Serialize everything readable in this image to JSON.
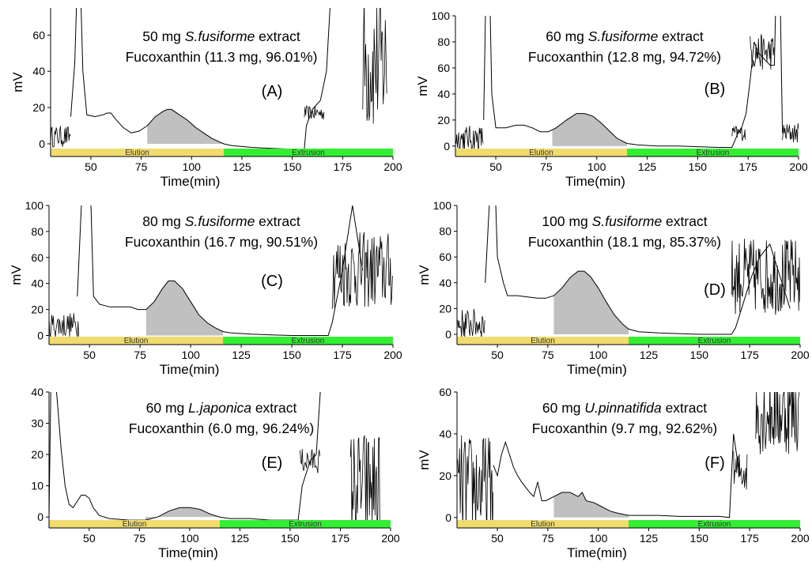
{
  "colors": {
    "trace": "#000000",
    "fill": "#c0c0c0",
    "elution": "#f0dc6e",
    "extrusion": "#33ee33"
  },
  "chart_data": [
    {
      "type": "line",
      "panel": "(A)",
      "line1": "50 mg",
      "species": "S.fusiforme",
      "line1_end": "extract",
      "line2": "Fucoxanthin (11.3 mg, 96.01%)",
      "xlabel": "Time(min)",
      "ylabel": "mV",
      "xlim": [
        30,
        200
      ],
      "ylim": [
        -7,
        75
      ],
      "xticks": [
        50,
        75,
        100,
        125,
        150,
        175,
        200
      ],
      "yticks": [
        0,
        20,
        40,
        60
      ],
      "bands": [
        {
          "label": "Elution",
          "start": 30,
          "end": 116,
          "color": "elution"
        },
        {
          "label": "Extrusion",
          "start": 116,
          "end": 200,
          "color": "extrusion"
        }
      ],
      "shaded": [
        78,
        116
      ],
      "trace": {
        "x": [
          40,
          42,
          44,
          46,
          48,
          52,
          56,
          58,
          60,
          62,
          66,
          70,
          74,
          78,
          82,
          86,
          88,
          90,
          94,
          98,
          102,
          106,
          110,
          114,
          116,
          120,
          130,
          140,
          150,
          156,
          157,
          160,
          164,
          167,
          170
        ],
        "y": [
          15,
          45,
          120,
          40,
          16,
          15,
          16,
          17,
          17,
          14,
          9,
          6,
          7,
          10,
          15,
          18,
          19,
          19,
          16,
          13,
          9,
          6,
          3,
          1,
          0,
          -1,
          -2,
          -2.5,
          -3,
          -3,
          10,
          19,
          24,
          40,
          100
        ]
      },
      "noise": [
        {
          "start": 30,
          "end": 40,
          "base": 4,
          "amp": 6
        },
        {
          "start": 156,
          "end": 166,
          "base": 17,
          "amp": 4
        },
        {
          "start": 185,
          "end": 197,
          "base": 45,
          "amp": 40
        }
      ]
    },
    {
      "type": "line",
      "panel": "(B)",
      "line1": "60 mg",
      "species": "S.fusiforme",
      "line1_end": "extract",
      "line2": "Fucoxanthin (12.8 mg, 94.72%)",
      "xlabel": "Time(min)",
      "ylabel": "mV",
      "xlim": [
        30,
        200
      ],
      "ylim": [
        -8,
        100
      ],
      "xticks": [
        50,
        75,
        100,
        125,
        150,
        175,
        200
      ],
      "yticks": [
        0,
        20,
        40,
        60,
        80,
        100
      ],
      "bands": [
        {
          "label": "Elution",
          "start": 30,
          "end": 115,
          "color": "elution"
        },
        {
          "label": "Extrusion",
          "start": 115,
          "end": 200,
          "color": "extrusion"
        }
      ],
      "shaded": [
        78,
        115
      ],
      "trace": {
        "x": [
          44,
          46,
          48,
          50,
          55,
          60,
          64,
          68,
          72,
          76,
          80,
          85,
          90,
          94,
          98,
          102,
          106,
          110,
          115,
          120,
          130,
          140,
          150,
          160,
          167,
          170,
          172,
          174,
          176,
          178,
          180,
          184,
          186,
          188,
          190,
          192
        ],
        "y": [
          20,
          200,
          40,
          14,
          14,
          16,
          16,
          14,
          11,
          11,
          14,
          20,
          25,
          25,
          23,
          18,
          12,
          6,
          2,
          1,
          0,
          0,
          -0.5,
          -1,
          -1,
          10,
          15,
          25,
          50,
          80,
          72,
          65,
          62,
          62,
          200,
          10
        ]
      },
      "noise": [
        {
          "start": 30,
          "end": 44,
          "base": 6,
          "amp": 10
        },
        {
          "start": 167,
          "end": 174,
          "base": 10,
          "amp": 6
        },
        {
          "start": 176,
          "end": 188,
          "base": 72,
          "amp": 14
        },
        {
          "start": 192,
          "end": 200,
          "base": 10,
          "amp": 8
        }
      ]
    },
    {
      "type": "line",
      "panel": "(C)",
      "line1": "80 mg",
      "species": "S.fusiforme",
      "line1_end": "extract",
      "line2": "Fucoxanthin (16.7 mg, 90.51%)",
      "xlabel": "Time(min)",
      "ylabel": "mV",
      "xlim": [
        30,
        200
      ],
      "ylim": [
        -7,
        100
      ],
      "xticks": [
        50,
        75,
        100,
        125,
        150,
        175,
        200
      ],
      "yticks": [
        0,
        20,
        40,
        60,
        80,
        100
      ],
      "bands": [
        {
          "label": "Elution",
          "start": 30,
          "end": 116,
          "color": "elution"
        },
        {
          "label": "Extrusion",
          "start": 116,
          "end": 200,
          "color": "extrusion"
        }
      ],
      "shaded": [
        78,
        116
      ],
      "trace": {
        "x": [
          44,
          46,
          48,
          50,
          52,
          55,
          60,
          65,
          70,
          74,
          78,
          82,
          86,
          89,
          92,
          96,
          100,
          104,
          108,
          112,
          116,
          120,
          130,
          140,
          150,
          160,
          168,
          170,
          175,
          180,
          185
        ],
        "y": [
          30,
          100,
          110,
          140,
          30,
          24,
          22,
          22,
          22,
          20,
          20,
          26,
          36,
          42,
          42,
          36,
          26,
          16,
          10,
          6,
          3,
          2,
          1,
          0.5,
          0,
          0,
          0,
          10,
          50,
          100,
          50
        ]
      },
      "noise": [
        {
          "start": 30,
          "end": 45,
          "base": 8,
          "amp": 10
        },
        {
          "start": 170,
          "end": 200,
          "base": 50,
          "amp": 30
        }
      ]
    },
    {
      "type": "line",
      "panel": "(D)",
      "line1": "100 mg",
      "species": "S.fusiforme",
      "line1_end": "extract",
      "line2": "Fucoxanthin (18.1 mg, 85.37%)",
      "xlabel": "Time(min)",
      "ylabel": "mV",
      "xlim": [
        30,
        200
      ],
      "ylim": [
        -8,
        100
      ],
      "xticks": [
        50,
        75,
        100,
        125,
        150,
        175,
        200
      ],
      "yticks": [
        0,
        20,
        40,
        60,
        80,
        100
      ],
      "bands": [
        {
          "label": "Elution",
          "start": 30,
          "end": 115,
          "color": "elution"
        },
        {
          "label": "Extrusion",
          "start": 115,
          "end": 200,
          "color": "extrusion"
        }
      ],
      "shaded": [
        78,
        115
      ],
      "trace": {
        "x": [
          44,
          46,
          48,
          50,
          53,
          55,
          60,
          65,
          70,
          74,
          78,
          82,
          86,
          90,
          93,
          96,
          100,
          104,
          108,
          112,
          115,
          120,
          130,
          140,
          150,
          160,
          166,
          168,
          172,
          176,
          180,
          185,
          190,
          195
        ],
        "y": [
          40,
          100,
          160,
          60,
          40,
          30,
          30,
          29,
          28,
          28,
          30,
          36,
          44,
          49,
          49,
          45,
          36,
          25,
          15,
          8,
          4,
          2,
          1,
          0.5,
          0,
          0,
          0,
          5,
          25,
          45,
          60,
          70,
          45,
          20
        ]
      },
      "noise": [
        {
          "start": 30,
          "end": 44,
          "base": 8,
          "amp": 12
        },
        {
          "start": 166,
          "end": 200,
          "base": 45,
          "amp": 30
        }
      ]
    },
    {
      "type": "line",
      "panel": "(E)",
      "line1": "60 mg",
      "species": "L.japonica",
      "line1_end": "extract",
      "line2": "Fucoxanthin (6.0 mg, 96.24%)",
      "xlabel": "Time(min)",
      "ylabel": "",
      "xlim": [
        30,
        200
      ],
      "ylim": [
        -3.5,
        40
      ],
      "xticks": [
        50,
        75,
        100,
        125,
        150,
        175,
        200
      ],
      "yticks": [
        0,
        10,
        20,
        30,
        40
      ],
      "bands": [
        {
          "label": "Elution",
          "start": 30,
          "end": 115,
          "color": "elution"
        },
        {
          "label": "Extrusion",
          "start": 115,
          "end": 200,
          "color": "extrusion"
        }
      ],
      "shaded": [
        78,
        115
      ],
      "trace": {
        "x": [
          30,
          31,
          32,
          33,
          34,
          36,
          38,
          40,
          42,
          44,
          46,
          48,
          50,
          52,
          55,
          60,
          70,
          78,
          84,
          90,
          95,
          100,
          105,
          110,
          115,
          120,
          130,
          140,
          150,
          154,
          156,
          160,
          163,
          165,
          170
        ],
        "y": [
          0,
          45,
          45,
          45,
          38,
          22,
          10,
          4,
          3,
          5,
          7,
          7,
          6,
          3,
          0.5,
          -0.5,
          -1,
          -1,
          0,
          2,
          3,
          3,
          2.5,
          1,
          0,
          -0.5,
          -0.5,
          -1,
          -1,
          -1,
          10,
          18,
          20,
          40,
          45
        ]
      },
      "noise": [
        {
          "start": 155,
          "end": 165,
          "base": 18,
          "amp": 4
        },
        {
          "start": 180,
          "end": 195,
          "base": 10,
          "amp": 18
        }
      ]
    },
    {
      "type": "line",
      "panel": "(F)",
      "line1": "60 mg",
      "species": "U.pinnatifida",
      "line1_end": "extract",
      "line2": "Fucoxanthin (9.7 mg, 92.62%)",
      "xlabel": "Time(min)",
      "ylabel": "mV",
      "xlim": [
        30,
        200
      ],
      "ylim": [
        -5,
        60
      ],
      "xticks": [
        50,
        75,
        100,
        125,
        150,
        175,
        200
      ],
      "yticks": [
        0,
        20,
        40,
        60
      ],
      "bands": [
        {
          "label": "Elution",
          "start": 30,
          "end": 115,
          "color": "elution"
        },
        {
          "label": "Extrusion",
          "start": 115,
          "end": 200,
          "color": "extrusion"
        }
      ],
      "shaded": [
        78,
        115
      ],
      "trace": {
        "x": [
          48,
          50,
          52,
          54,
          56,
          58,
          60,
          62,
          66,
          68,
          70,
          72,
          74,
          78,
          82,
          86,
          90,
          92,
          94,
          98,
          102,
          106,
          110,
          115,
          120,
          130,
          140,
          150,
          160,
          165,
          167,
          170
        ],
        "y": [
          25,
          20,
          30,
          36,
          30,
          24,
          20,
          17,
          12,
          10,
          17,
          8,
          8,
          10,
          12,
          12,
          10,
          12,
          8,
          7,
          5,
          3,
          2,
          1,
          1,
          1,
          0.5,
          0.5,
          0.5,
          0,
          40,
          20
        ]
      },
      "noise": [
        {
          "start": 30,
          "end": 48,
          "base": 15,
          "amp": 25
        },
        {
          "start": 167,
          "end": 174,
          "base": 22,
          "amp": 10
        },
        {
          "start": 178,
          "end": 200,
          "base": 50,
          "amp": 20
        }
      ]
    }
  ]
}
